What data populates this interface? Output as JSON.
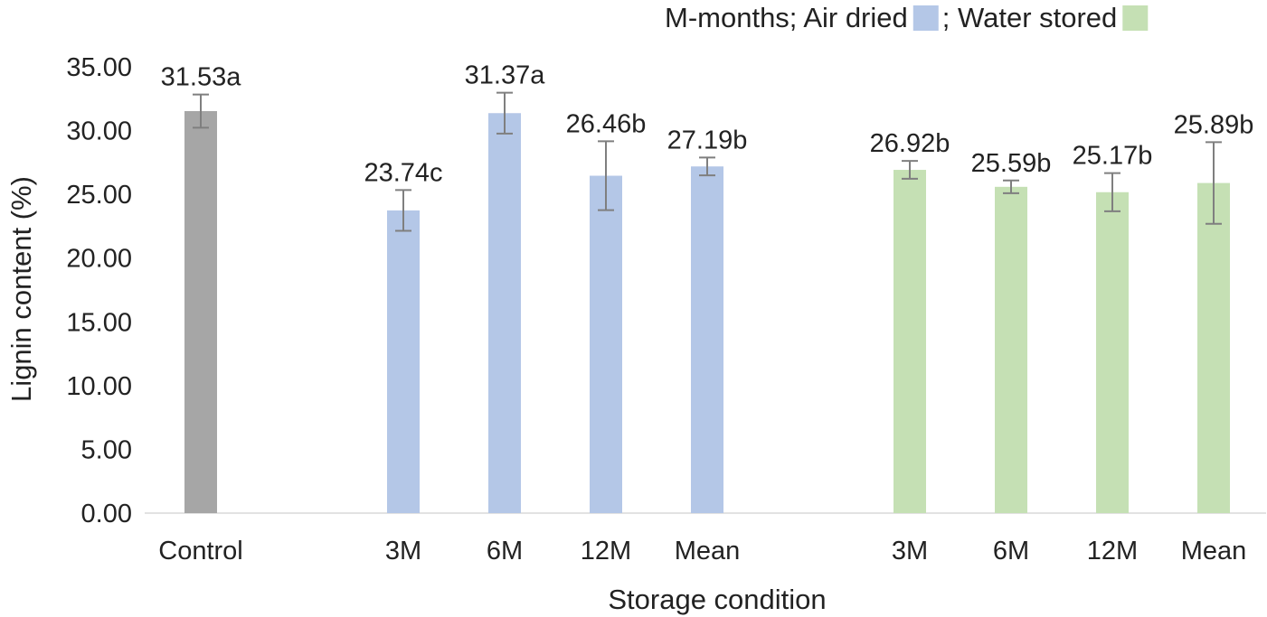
{
  "chart_data": {
    "type": "bar",
    "title": "",
    "xlabel": "Storage condition",
    "ylabel": "Lignin content (%)",
    "ylim": [
      0,
      35
    ],
    "yticks": [
      "0.00",
      "5.00",
      "10.00",
      "15.00",
      "20.00",
      "25.00",
      "30.00",
      "35.00"
    ],
    "ytick_values": [
      0,
      5,
      10,
      15,
      20,
      25,
      30,
      35
    ],
    "grid": false,
    "legend": {
      "position": "top-right",
      "prefix": "M-months; Air dried",
      "separator": "; Water stored",
      "entries": [
        {
          "name": "Air dried",
          "color": "#b4c7e7"
        },
        {
          "name": "Water stored",
          "color": "#c5e0b4"
        }
      ]
    },
    "bars": [
      {
        "category": "Control",
        "group": "Control",
        "value": 31.53,
        "error": 1.3,
        "label": "31.53a",
        "color": "#a6a6a6"
      },
      {
        "category": "3M",
        "group": "Air dried",
        "value": 23.74,
        "error": 1.6,
        "label": "23.74c",
        "color": "#b4c7e7"
      },
      {
        "category": "6M",
        "group": "Air dried",
        "value": 31.37,
        "error": 1.6,
        "label": "31.37a",
        "color": "#b4c7e7"
      },
      {
        "category": "12M",
        "group": "Air dried",
        "value": 26.46,
        "error": 2.7,
        "label": "26.46b",
        "color": "#b4c7e7"
      },
      {
        "category": "Mean",
        "group": "Air dried",
        "value": 27.19,
        "error": 0.7,
        "label": "27.19b",
        "color": "#b4c7e7"
      },
      {
        "category": "3M",
        "group": "Water stored",
        "value": 26.92,
        "error": 0.7,
        "label": "26.92b",
        "color": "#c5e0b4"
      },
      {
        "category": "6M",
        "group": "Water stored",
        "value": 25.59,
        "error": 0.5,
        "label": "25.59b",
        "color": "#c5e0b4"
      },
      {
        "category": "12M",
        "group": "Water stored",
        "value": 25.17,
        "error": 1.5,
        "label": "25.17b",
        "color": "#c5e0b4"
      },
      {
        "category": "Mean",
        "group": "Water stored",
        "value": 25.89,
        "error": 3.2,
        "label": "25.89b",
        "color": "#c5e0b4"
      }
    ],
    "error_bar_color": "#7f7f7f",
    "axis_color": "#d9d9d9"
  }
}
